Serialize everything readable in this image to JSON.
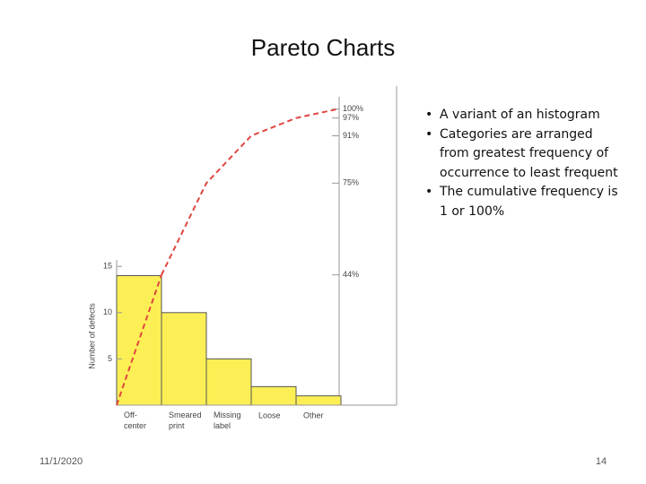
{
  "slide": {
    "title": "Pareto Charts",
    "bullets": [
      "A variant of an histogram",
      "Categories are arranged from greatest frequency of occurrence to least frequent",
      "The cumulative frequency is 1 or 100%"
    ],
    "date": "11/1/2020",
    "page": "14"
  },
  "chart_data": {
    "type": "pareto",
    "ylabel": "Number of defects",
    "categories": [
      "Off-center",
      "Smeared print",
      "Missing label",
      "Loose",
      "Other"
    ],
    "values": [
      14,
      10,
      5,
      2,
      1
    ],
    "color": "#fcef55",
    "ylim": [
      0,
      34.5
    ],
    "yticks": [
      5,
      10,
      15
    ],
    "line": {
      "values": [
        44,
        75,
        91,
        97,
        100
      ],
      "color": "#e0453f",
      "axis": "y2"
    },
    "y2lim": [
      0,
      107.8
    ],
    "y2ticks": [
      {
        "value": 44,
        "label": "44%"
      },
      {
        "value": 75,
        "label": "75%"
      },
      {
        "value": 91,
        "label": "91%"
      },
      {
        "value": 97,
        "label": "97%"
      },
      {
        "value": 100,
        "label": "100%"
      }
    ]
  }
}
